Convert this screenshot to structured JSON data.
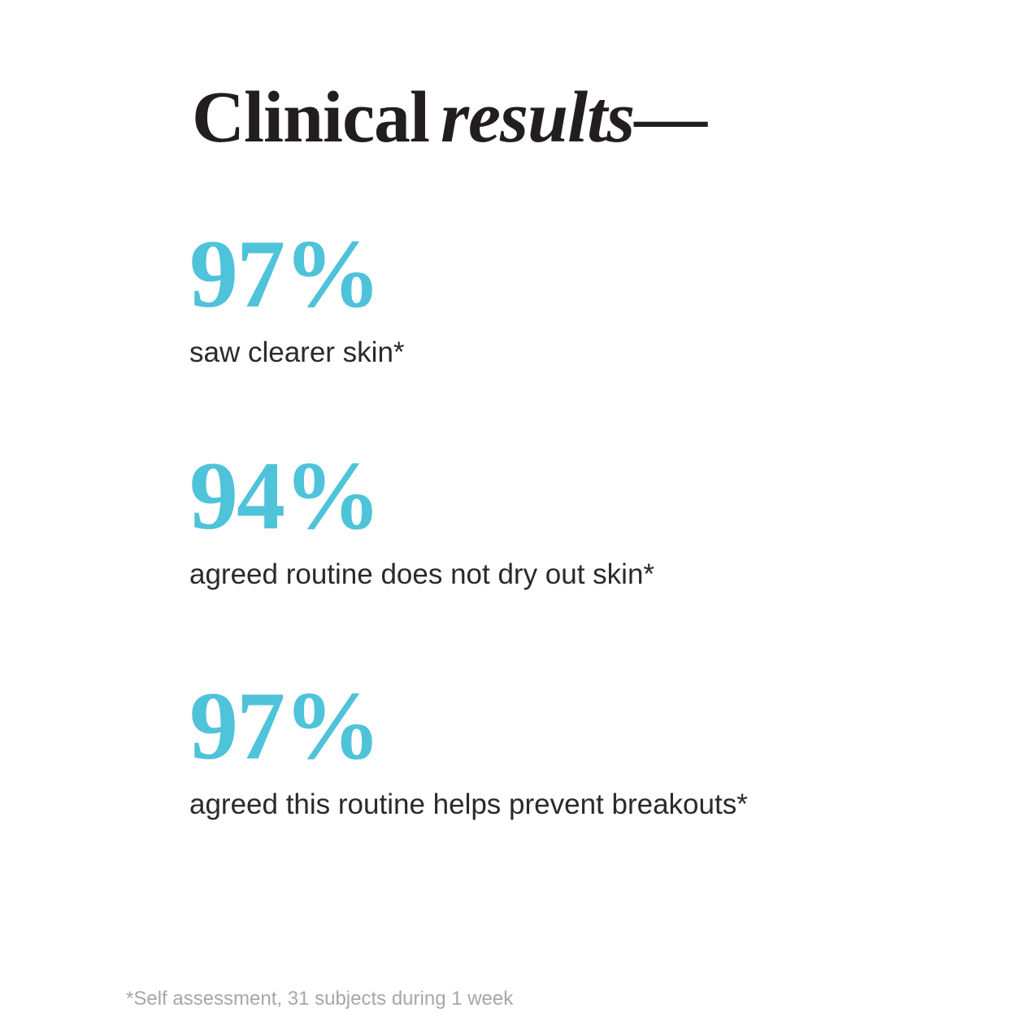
{
  "title": {
    "word1": "Clinical",
    "word2": "results",
    "dash": "—"
  },
  "stats": [
    {
      "value": "97%",
      "label": "saw clearer skin*"
    },
    {
      "value": "94%",
      "label": "agreed routine does not dry out skin*"
    },
    {
      "value": "97%",
      "label": "agreed this routine helps prevent breakouts*"
    }
  ],
  "footnote": "*Self assessment, 31 subjects during 1 week",
  "colors": {
    "accent": "#4ec3d9",
    "title": "#221e1f",
    "label": "#2a2a2a",
    "footnote": "#a7a7a7",
    "background": "#ffffff"
  }
}
